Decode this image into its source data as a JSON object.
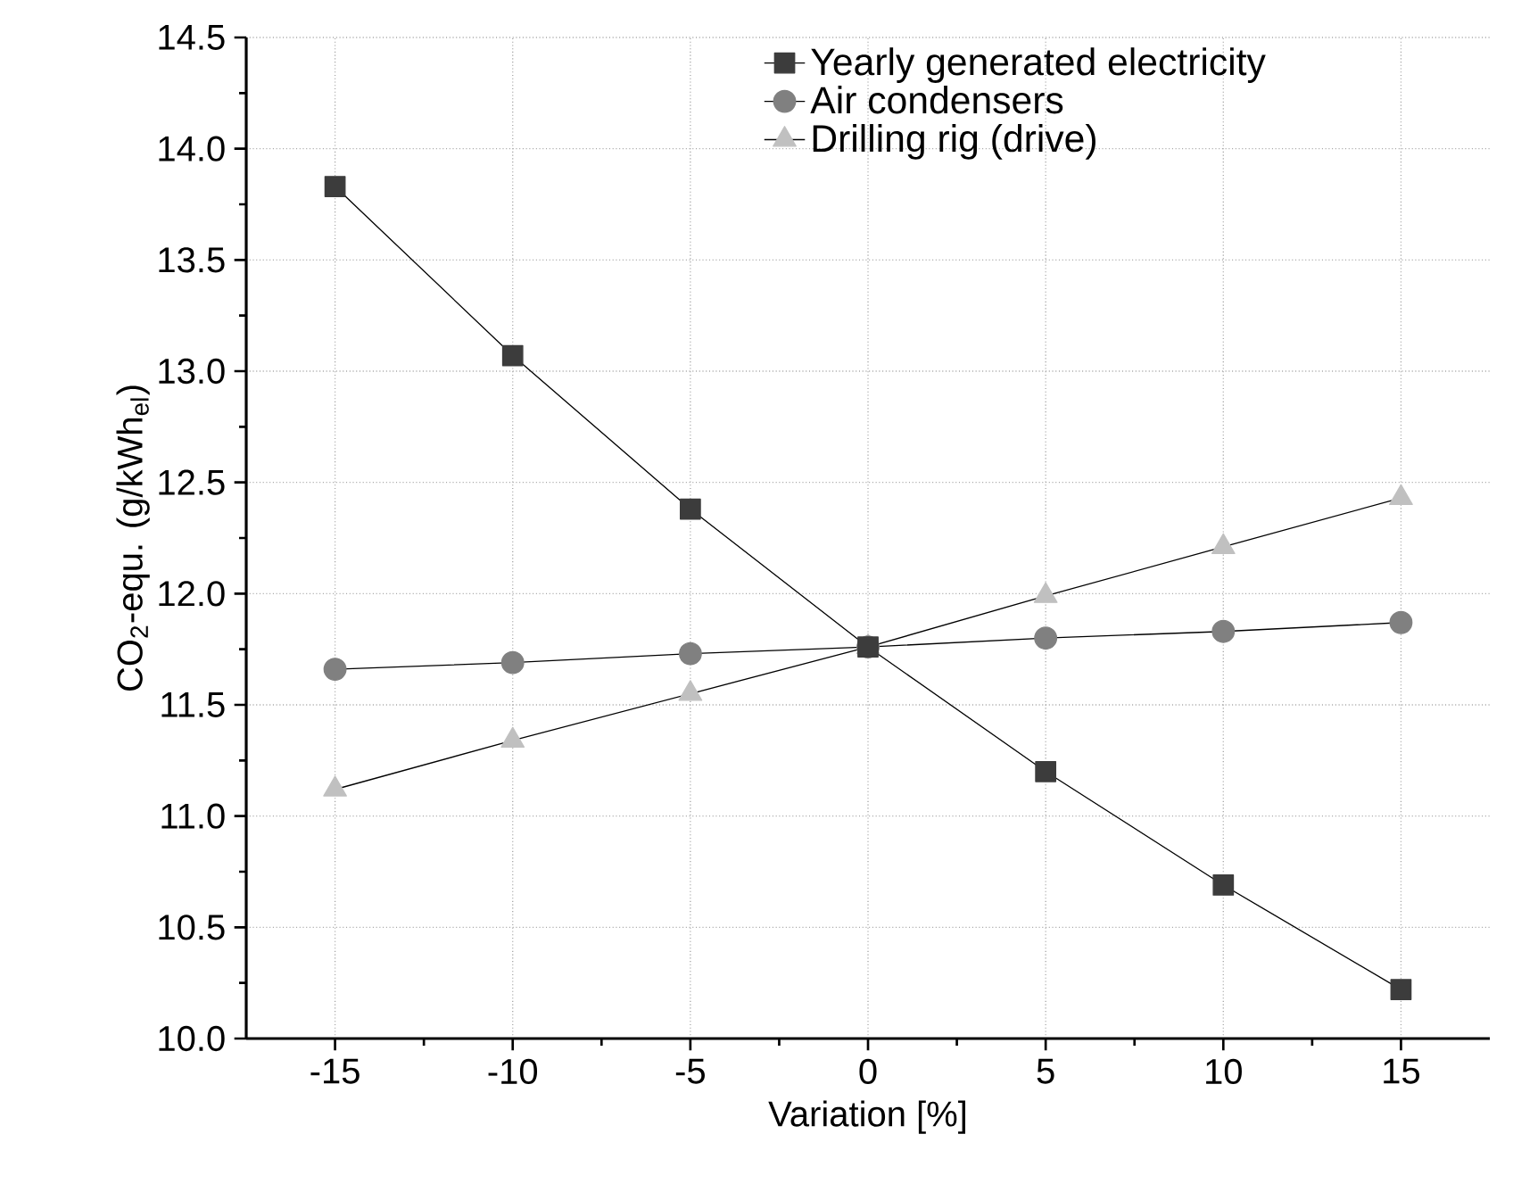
{
  "chart_data": {
    "type": "line",
    "xlabel": "Variation [%]",
    "ylabel": "CO$_{2}$-equ. (g/kWh$_{el}$)",
    "x": [
      -15,
      -10,
      -5,
      0,
      5,
      10,
      15
    ],
    "series": [
      {
        "name": "Yearly generated electricity",
        "color": "#3c3c3c",
        "marker": "square",
        "values": [
          13.83,
          13.07,
          12.38,
          11.76,
          11.2,
          10.69,
          10.22
        ]
      },
      {
        "name": "Air condensers",
        "color": "#808080",
        "marker": "circle",
        "values": [
          11.66,
          11.69,
          11.73,
          11.76,
          11.8,
          11.83,
          11.87
        ]
      },
      {
        "name": "Drilling rig (drive)",
        "color": "#c0c0c0",
        "marker": "triangle",
        "values": [
          11.12,
          11.34,
          11.55,
          11.76,
          11.99,
          12.21,
          12.43
        ]
      }
    ],
    "xlim": [
      -17.5,
      17.5
    ],
    "xticks": [
      -15,
      -10,
      -5,
      0,
      5,
      10,
      15
    ],
    "ylim": [
      10.0,
      14.5
    ],
    "yticks": [
      {
        "value": 10.0,
        "label": "10.0"
      },
      {
        "value": 10.5,
        "label": "10.5"
      },
      {
        "value": 11.0,
        "label": "11.0"
      },
      {
        "value": 11.5,
        "label": "11.5"
      },
      {
        "value": 12.0,
        "label": "12.0"
      },
      {
        "value": 12.5,
        "label": "12.5"
      },
      {
        "value": 13.0,
        "label": "13.0"
      },
      {
        "value": 13.5,
        "label": "13.5"
      },
      {
        "value": 14.0,
        "label": "14.0"
      },
      {
        "value": 14.5,
        "label": "14.5"
      }
    ],
    "grid": true,
    "legend": "top right",
    "line_style": "solid"
  }
}
